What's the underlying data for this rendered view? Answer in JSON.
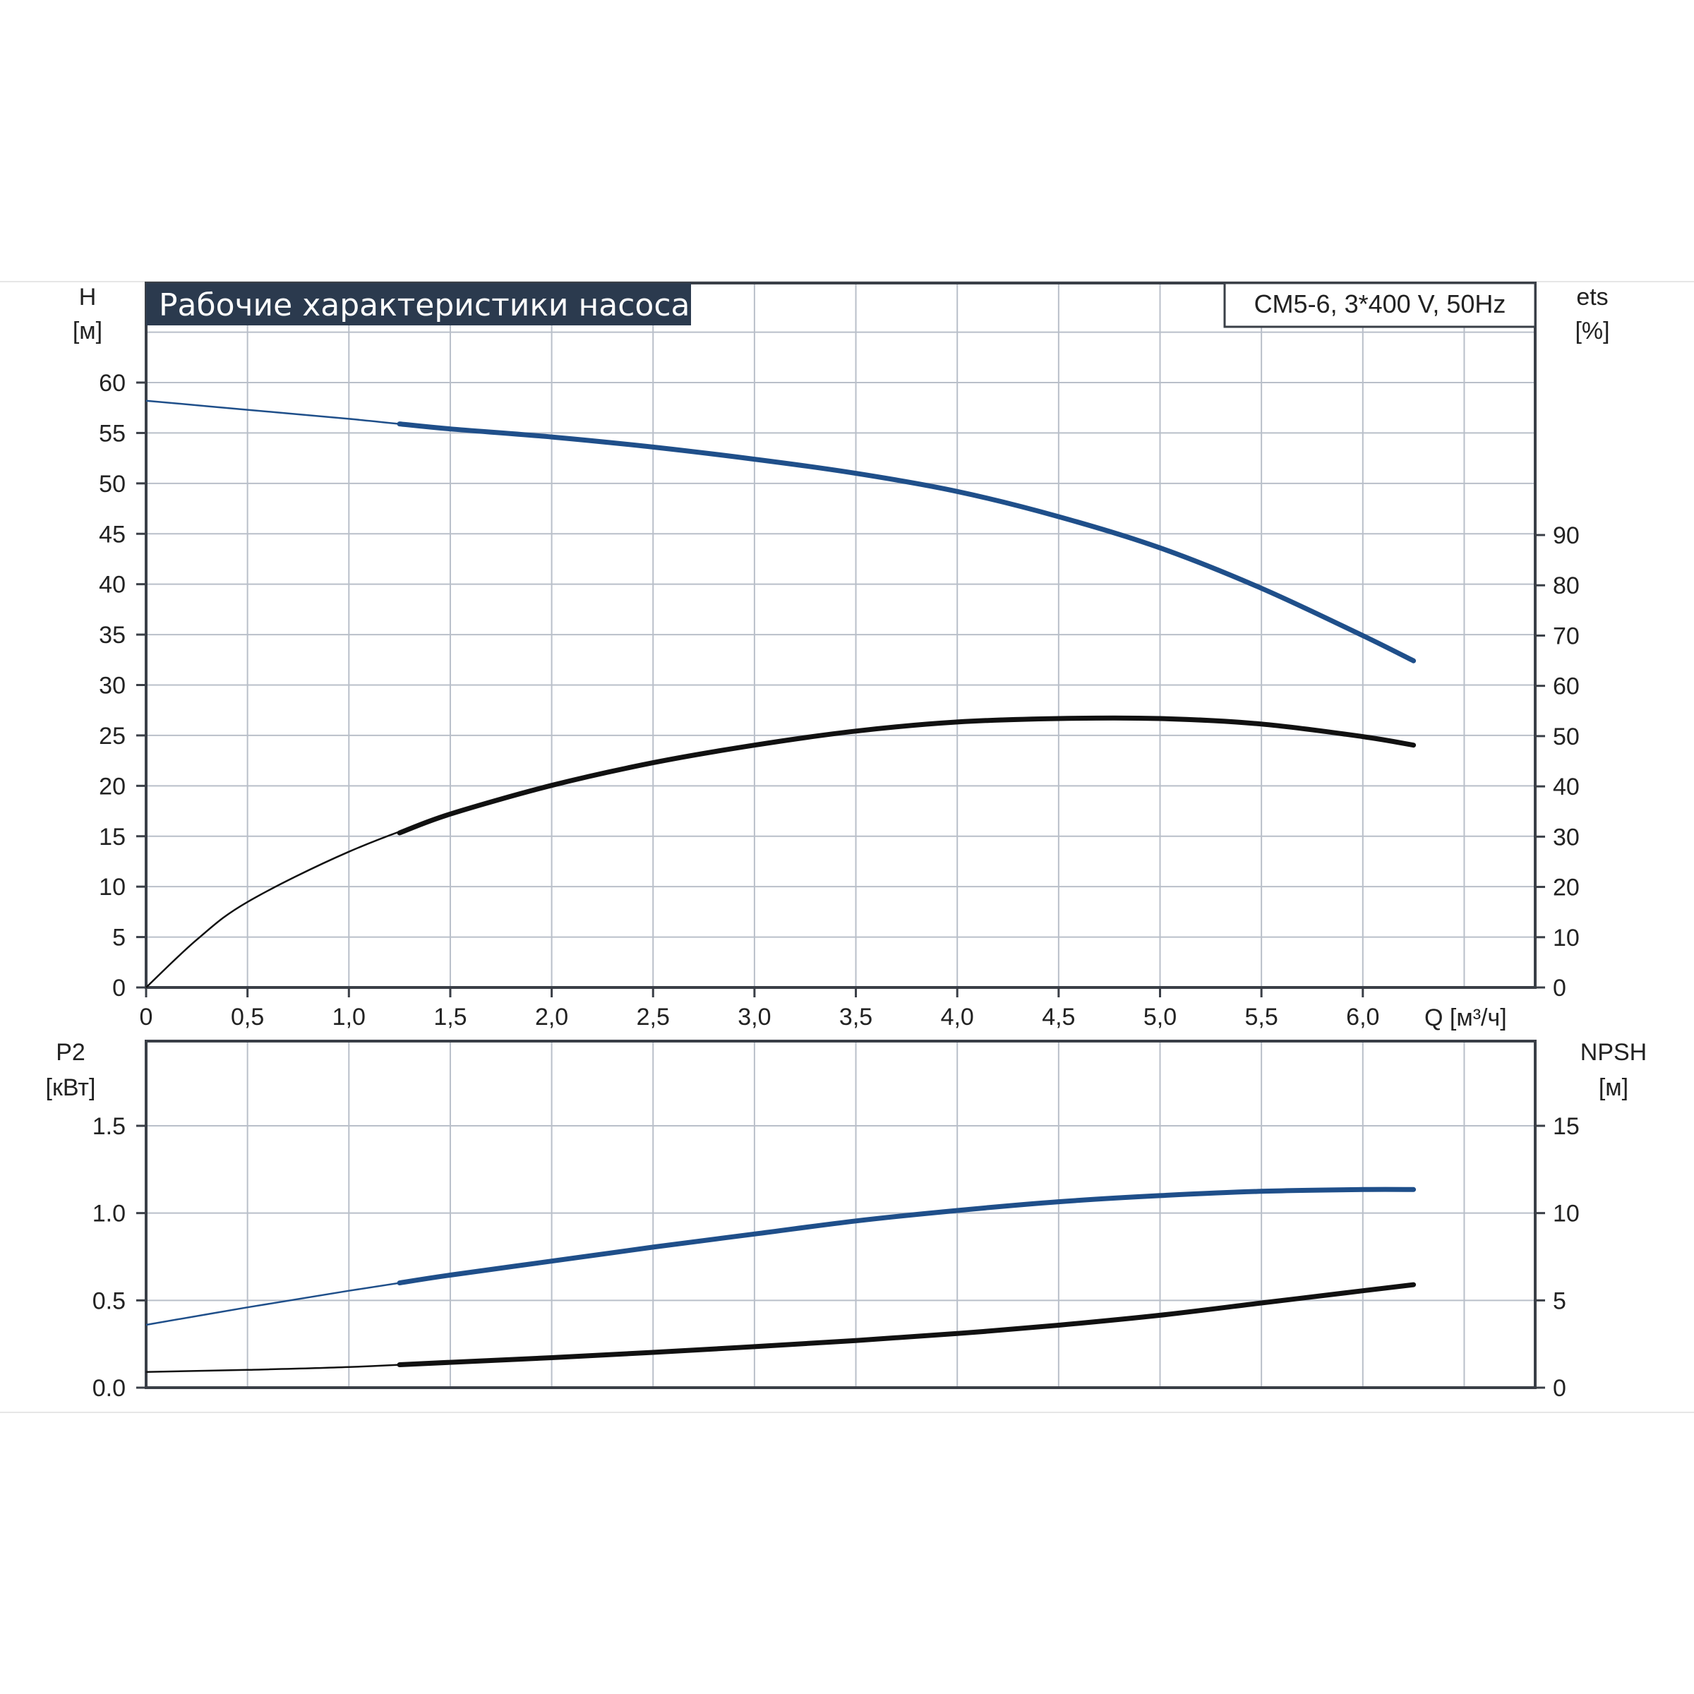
{
  "header": {
    "title": "Рабочие характеристики насоса",
    "model": "CM5-6, 3*400 V, 50Hz"
  },
  "colors": {
    "title_bg": "#2b3a4e",
    "blue_curve": "#1f4f8a",
    "black_curve": "#111111",
    "grid": "#b9bfc9"
  },
  "axes": {
    "top_left_label": "H",
    "top_left_unit": "[м]",
    "top_right_label": "ets",
    "top_right_unit": "[%]",
    "x_label": "Q [м³/ч]",
    "bottom_left_label": "P2",
    "bottom_left_unit": "[кВт]",
    "bottom_right_label": "NPSH",
    "bottom_right_unit": "[м]"
  },
  "chart_data": [
    {
      "type": "line",
      "panel": "top",
      "x_ticks": [
        "0",
        "0,5",
        "1,0",
        "1,5",
        "2,0",
        "2,5",
        "3,0",
        "3,5",
        "4,0",
        "4,5",
        "5,0",
        "5,5",
        "6,0"
      ],
      "xlim": [
        0,
        6.85
      ],
      "y_ticks": [
        "0",
        "5",
        "10",
        "15",
        "20",
        "25",
        "30",
        "35",
        "40",
        "45",
        "50",
        "55",
        "60"
      ],
      "ylim": [
        0,
        65
      ],
      "y2_ticks": [
        "0",
        "10",
        "20",
        "30",
        "40",
        "50",
        "60",
        "70",
        "80",
        "90"
      ],
      "y2lim": [
        0,
        130
      ],
      "grid": true,
      "series": [
        {
          "axis": "left",
          "color": "blue",
          "x": [
            0,
            0.5,
            1.0,
            1.5,
            2.0,
            2.5,
            3.0,
            3.5,
            4.0,
            4.5,
            5.0,
            5.5,
            6.0,
            6.25
          ],
          "y": [
            58.2,
            57.3,
            56.4,
            55.4,
            54.6,
            53.6,
            52.4,
            51.0,
            49.2,
            46.7,
            43.6,
            39.6,
            34.9,
            32.4
          ]
        },
        {
          "axis": "right",
          "color": "black",
          "x": [
            0,
            0.25,
            0.5,
            1.0,
            1.5,
            2.0,
            2.5,
            3.0,
            3.5,
            4.0,
            4.5,
            5.0,
            5.5,
            6.0,
            6.25
          ],
          "y": [
            0,
            9.5,
            17,
            27,
            34.5,
            40.2,
            44.7,
            48.2,
            51.0,
            52.8,
            53.5,
            53.5,
            52.4,
            49.9,
            48.2
          ]
        }
      ]
    },
    {
      "type": "line",
      "panel": "bottom",
      "xlim": [
        0,
        6.85
      ],
      "y_ticks": [
        "0.0",
        "0.5",
        "1.0",
        "1.5"
      ],
      "ylim": [
        0,
        2.0
      ],
      "y2_ticks": [
        "0",
        "5",
        "10",
        "15"
      ],
      "y2lim": [
        0,
        20
      ],
      "grid": true,
      "series": [
        {
          "axis": "left",
          "color": "blue",
          "x": [
            0,
            0.5,
            1.0,
            1.5,
            2.0,
            2.5,
            3.0,
            3.5,
            4.0,
            4.5,
            5.0,
            5.5,
            6.0,
            6.25
          ],
          "y": [
            0.36,
            0.46,
            0.555,
            0.645,
            0.725,
            0.805,
            0.88,
            0.955,
            1.015,
            1.065,
            1.1,
            1.125,
            1.135,
            1.135
          ]
        },
        {
          "axis": "right",
          "color": "black",
          "x": [
            0,
            0.5,
            1.0,
            1.5,
            2.0,
            2.5,
            3.0,
            3.5,
            4.0,
            4.5,
            5.0,
            5.5,
            6.0,
            6.25
          ],
          "y": [
            0.9,
            1.02,
            1.18,
            1.45,
            1.72,
            2.02,
            2.35,
            2.7,
            3.1,
            3.58,
            4.15,
            4.85,
            5.55,
            5.9
          ]
        }
      ]
    }
  ]
}
